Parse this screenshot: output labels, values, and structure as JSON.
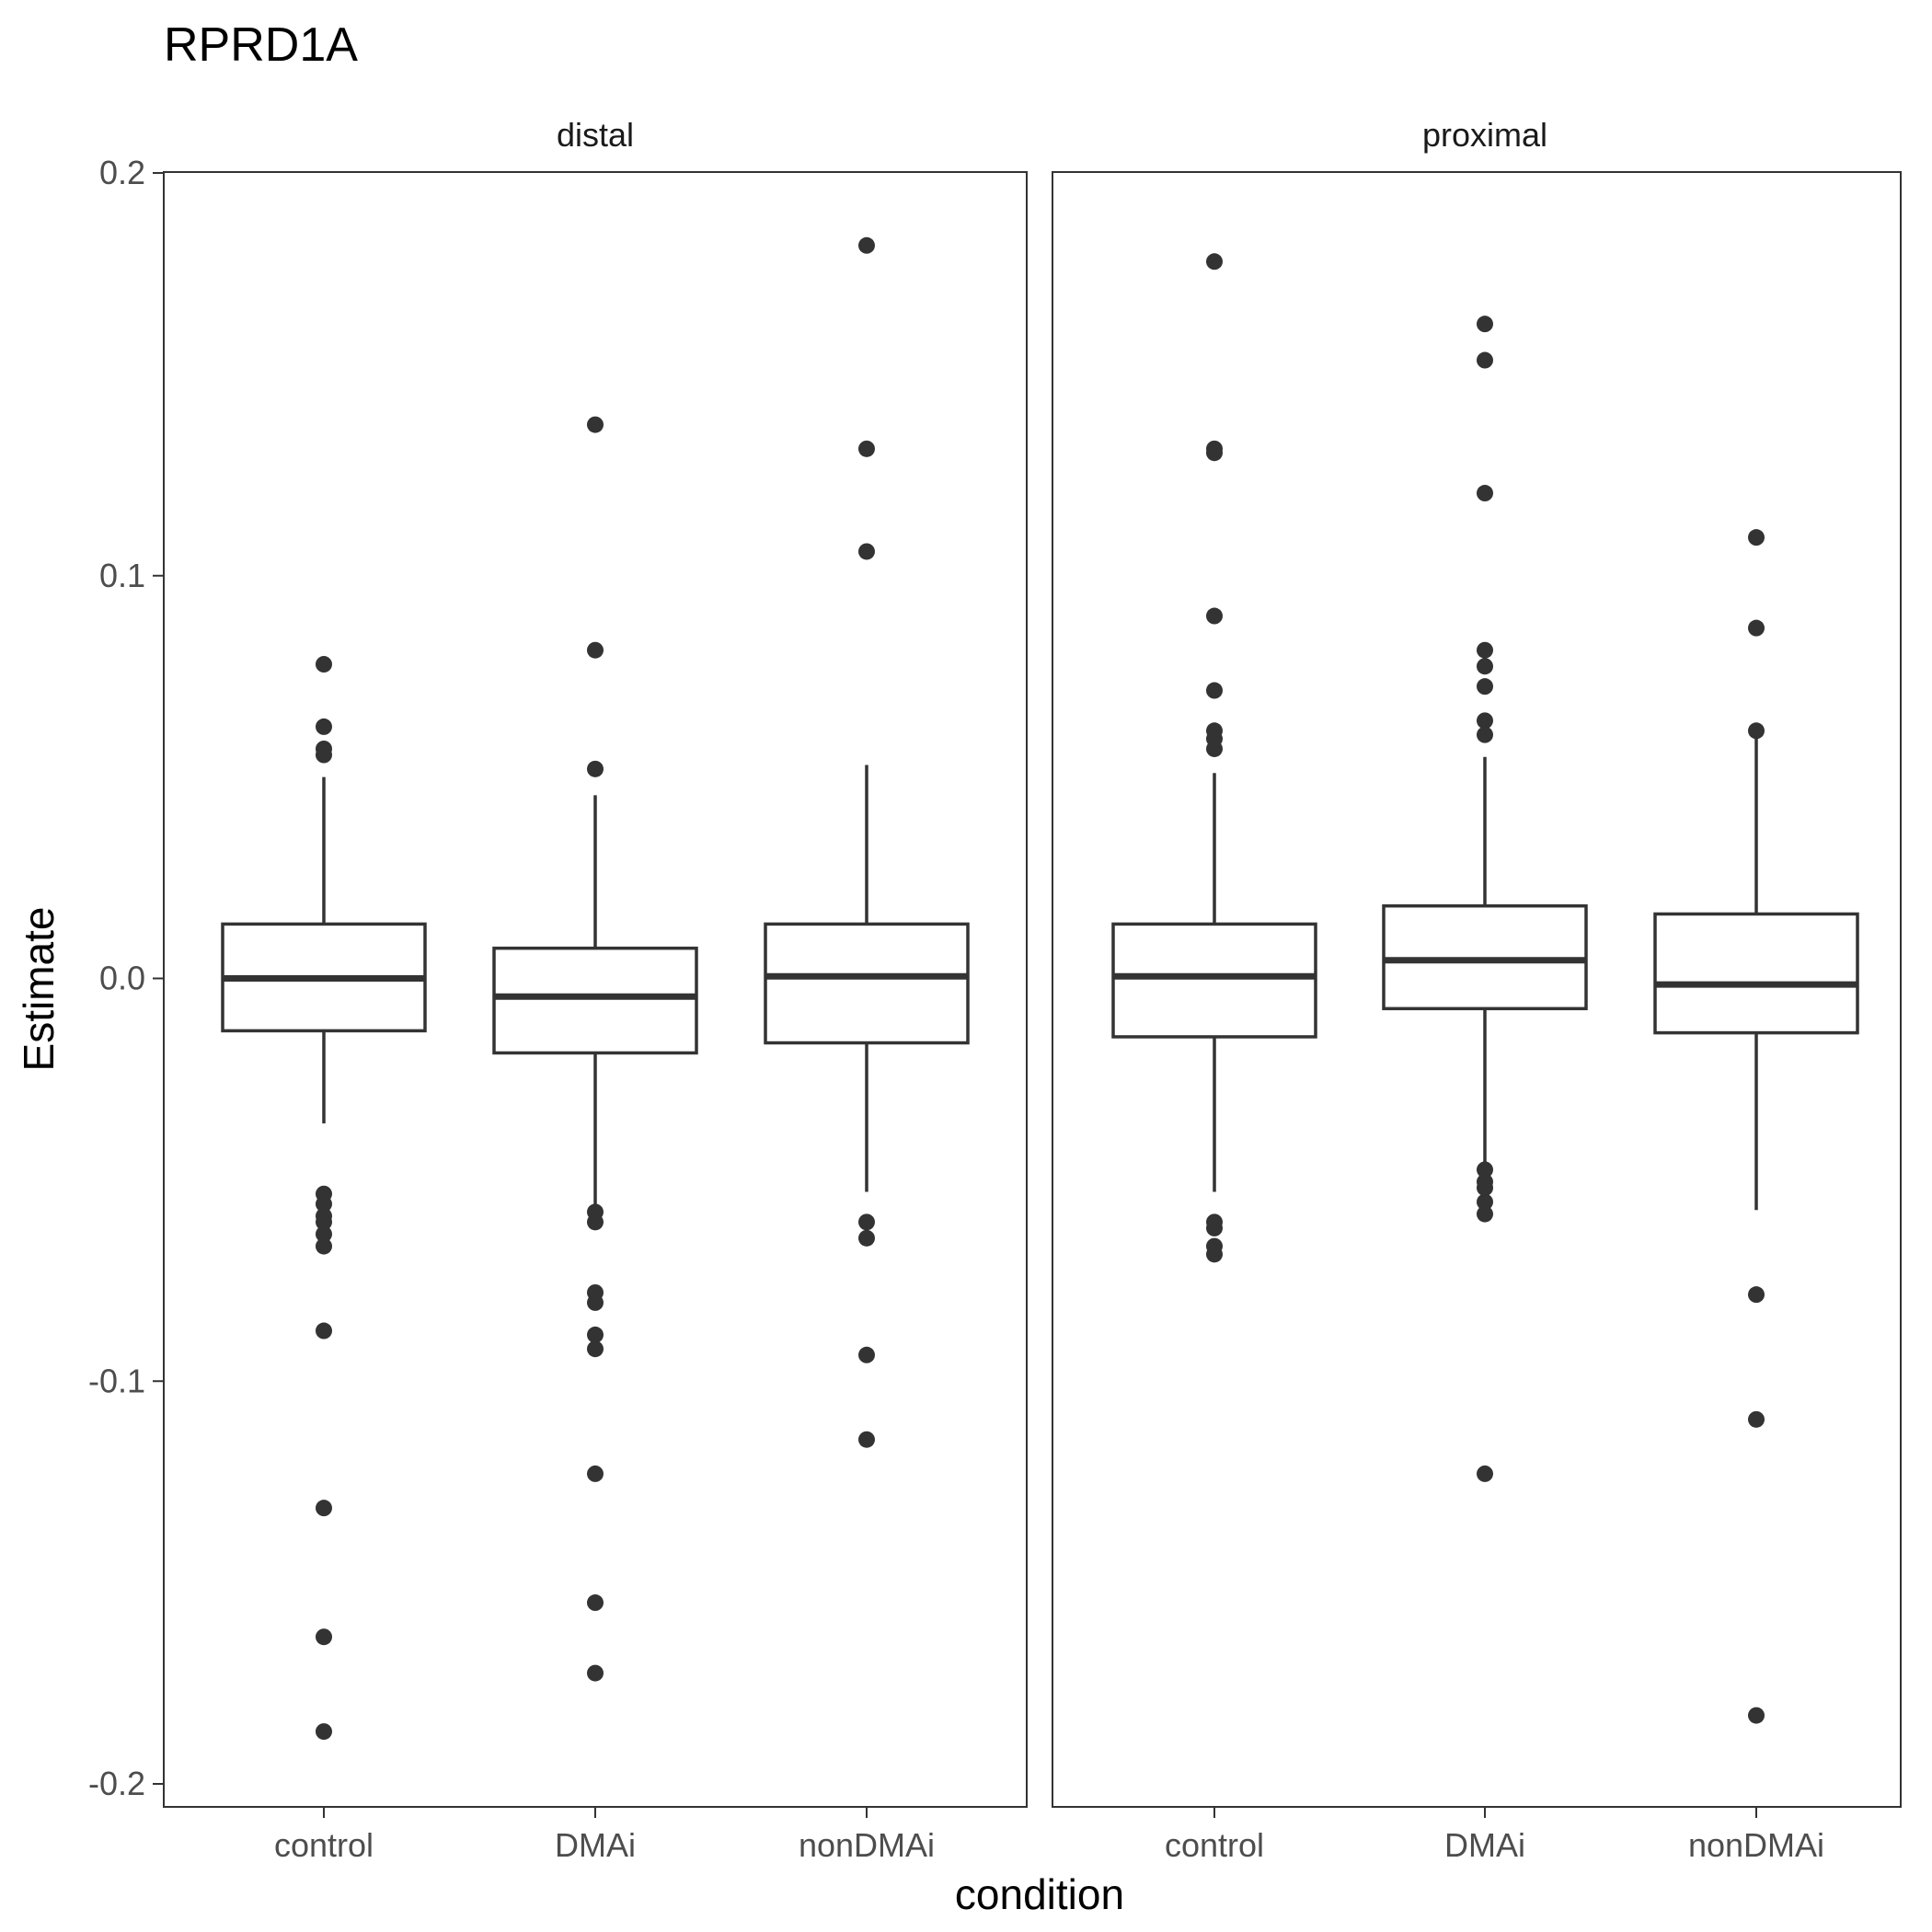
{
  "chart_data": {
    "type": "boxplot",
    "title": "RPRD1A",
    "xlabel": "condition",
    "ylabel": "Estimate",
    "ylim": [
      -0.205,
      0.2
    ],
    "yticks": [
      -0.2,
      -0.1,
      0.0,
      0.1,
      0.2
    ],
    "ytick_labels": [
      "-0.2",
      "-0.1",
      "0.0",
      "0.1",
      "0.2"
    ],
    "categories": [
      "control",
      "DMAi",
      "nonDMAi"
    ],
    "grid": false,
    "legend": "none",
    "facets": [
      {
        "label": "distal",
        "boxes": [
          {
            "category": "control",
            "lower_whisker": -0.036,
            "q1": -0.013,
            "median": 0.0,
            "q3": 0.0135,
            "upper_whisker": 0.05,
            "outliers": [
              0.078,
              0.0625,
              0.057,
              0.0555,
              -0.0535,
              -0.056,
              -0.059,
              -0.0605,
              -0.0635,
              -0.0665,
              -0.0875,
              -0.1315,
              -0.1635,
              -0.187
            ]
          },
          {
            "category": "DMAi",
            "lower_whisker": -0.057,
            "q1": -0.0185,
            "median": -0.0045,
            "q3": 0.0075,
            "upper_whisker": 0.0455,
            "outliers": [
              0.1375,
              0.0815,
              0.052,
              -0.058,
              -0.0605,
              -0.078,
              -0.0805,
              -0.0885,
              -0.092,
              -0.123,
              -0.155,
              -0.1725
            ]
          },
          {
            "category": "nonDMAi",
            "lower_whisker": -0.053,
            "q1": -0.016,
            "median": 0.0005,
            "q3": 0.0135,
            "upper_whisker": 0.053,
            "outliers": [
              0.182,
              0.1315,
              0.106,
              -0.0605,
              -0.0645,
              -0.0935,
              -0.1145
            ]
          }
        ]
      },
      {
        "label": "proximal",
        "boxes": [
          {
            "category": "control",
            "lower_whisker": -0.053,
            "q1": -0.0145,
            "median": 0.0005,
            "q3": 0.0135,
            "upper_whisker": 0.051,
            "outliers": [
              0.178,
              0.1315,
              0.1305,
              0.09,
              0.0715,
              0.0615,
              0.0595,
              0.057,
              -0.0605,
              -0.062,
              -0.0665,
              -0.0685
            ]
          },
          {
            "category": "DMAi",
            "lower_whisker": -0.046,
            "q1": -0.0075,
            "median": 0.0045,
            "q3": 0.018,
            "upper_whisker": 0.055,
            "outliers": [
              0.1625,
              0.1535,
              0.1205,
              0.0815,
              0.0775,
              0.0725,
              0.064,
              0.0605,
              -0.0475,
              -0.0505,
              -0.052,
              -0.0555,
              -0.0585,
              -0.123
            ]
          },
          {
            "category": "nonDMAi",
            "lower_whisker": -0.0575,
            "q1": -0.0135,
            "median": -0.0015,
            "q3": 0.016,
            "upper_whisker": 0.0615,
            "outliers": [
              0.1095,
              0.087,
              0.0615,
              -0.0785,
              -0.1095,
              -0.183
            ]
          }
        ]
      }
    ]
  }
}
